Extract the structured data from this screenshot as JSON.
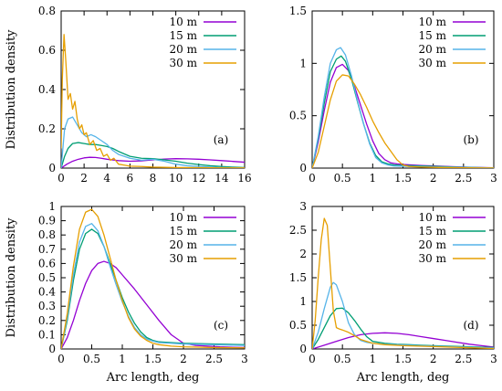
{
  "chart_data": [
    {
      "type": "line",
      "panel_tag": "(a)",
      "xlabel": "",
      "ylabel": "Distribution density",
      "xlim": [
        0,
        16
      ],
      "ylim": [
        0,
        0.8
      ],
      "xticks": [
        "0",
        "2",
        "4",
        "6",
        "8",
        "10",
        "12",
        "14",
        "16"
      ],
      "yticks": [
        "0",
        "0.2",
        "0.4",
        "0.6",
        "0.8"
      ],
      "legend_position": "top-right",
      "series": [
        {
          "name": "10 m",
          "color": "#9400D3",
          "x": [
            0,
            0.5,
            1,
            1.5,
            2,
            2.5,
            3,
            3.5,
            4,
            5,
            6,
            7,
            8,
            9,
            10,
            11,
            12,
            13,
            14,
            15,
            16
          ],
          "y": [
            0,
            0.02,
            0.035,
            0.045,
            0.052,
            0.055,
            0.054,
            0.05,
            0.045,
            0.038,
            0.035,
            0.037,
            0.042,
            0.046,
            0.048,
            0.047,
            0.045,
            0.042,
            0.038,
            0.034,
            0.03
          ]
        },
        {
          "name": "15 m",
          "color": "#009E73",
          "x": [
            0,
            0.3,
            0.6,
            1,
            1.5,
            2,
            2.5,
            3,
            3.5,
            4,
            4.5,
            5,
            6,
            7,
            8,
            9,
            10,
            11,
            12,
            13,
            14,
            15,
            16
          ],
          "y": [
            0,
            0.06,
            0.1,
            0.125,
            0.13,
            0.125,
            0.12,
            0.12,
            0.115,
            0.11,
            0.1,
            0.085,
            0.06,
            0.05,
            0.048,
            0.042,
            0.035,
            0.025,
            0.018,
            0.012,
            0.008,
            0.005,
            0.003
          ]
        },
        {
          "name": "20 m",
          "color": "#56B4E9",
          "x": [
            0,
            0.3,
            0.6,
            1,
            1.4,
            1.8,
            2.2,
            2.6,
            3,
            3.5,
            4,
            4.5,
            5,
            6,
            7,
            8,
            9,
            10,
            11,
            12,
            13,
            14,
            15,
            16
          ],
          "y": [
            0,
            0.2,
            0.25,
            0.26,
            0.22,
            0.18,
            0.16,
            0.17,
            0.16,
            0.14,
            0.12,
            0.09,
            0.07,
            0.05,
            0.04,
            0.045,
            0.035,
            0.02,
            0.012,
            0.008,
            0.005,
            0.003,
            0.002,
            0.001
          ]
        },
        {
          "name": "30 m",
          "color": "#E69F00",
          "x": [
            0,
            0.1,
            0.25,
            0.4,
            0.6,
            0.8,
            1,
            1.2,
            1.4,
            1.6,
            1.8,
            2,
            2.2,
            2.5,
            2.8,
            3.1,
            3.4,
            3.7,
            4,
            4.3,
            4.6,
            5,
            5.5,
            6,
            7,
            8,
            10,
            12,
            14,
            16
          ],
          "y": [
            0.1,
            0.45,
            0.68,
            0.55,
            0.35,
            0.38,
            0.3,
            0.34,
            0.25,
            0.2,
            0.22,
            0.17,
            0.18,
            0.12,
            0.14,
            0.09,
            0.1,
            0.06,
            0.07,
            0.04,
            0.05,
            0.02,
            0.015,
            0.01,
            0.008,
            0.005,
            0.003,
            0.002,
            0.001,
            0.001
          ]
        }
      ]
    },
    {
      "type": "line",
      "panel_tag": "(b)",
      "xlabel": "",
      "ylabel": "",
      "xlim": [
        0,
        3
      ],
      "ylim": [
        0,
        1.5
      ],
      "xticks": [
        "0",
        "0.5",
        "1",
        "1.5",
        "2",
        "2.5",
        "3"
      ],
      "yticks": [
        "0",
        "0.5",
        "1",
        "1.5"
      ],
      "legend_position": "top-right",
      "series": [
        {
          "name": "10 m",
          "color": "#9400D3",
          "x": [
            0,
            0.1,
            0.2,
            0.3,
            0.4,
            0.5,
            0.6,
            0.7,
            0.8,
            0.9,
            1.0,
            1.1,
            1.2,
            1.3,
            1.4,
            1.5,
            1.8,
            2.1,
            2.4,
            2.7,
            3.0
          ],
          "y": [
            0,
            0.25,
            0.55,
            0.82,
            0.96,
            0.99,
            0.93,
            0.78,
            0.6,
            0.42,
            0.26,
            0.14,
            0.08,
            0.05,
            0.04,
            0.035,
            0.025,
            0.018,
            0.012,
            0.006,
            0.003
          ]
        },
        {
          "name": "15 m",
          "color": "#009E73",
          "x": [
            0,
            0.1,
            0.2,
            0.3,
            0.4,
            0.48,
            0.55,
            0.65,
            0.75,
            0.85,
            0.95,
            1.05,
            1.15,
            1.25,
            1.35,
            1.5,
            1.8,
            2.1,
            2.4,
            2.7,
            3.0
          ],
          "y": [
            0,
            0.28,
            0.62,
            0.92,
            1.04,
            1.07,
            1.02,
            0.85,
            0.63,
            0.42,
            0.24,
            0.12,
            0.06,
            0.04,
            0.03,
            0.025,
            0.02,
            0.015,
            0.01,
            0.005,
            0.002
          ]
        },
        {
          "name": "20 m",
          "color": "#56B4E9",
          "x": [
            0,
            0.1,
            0.2,
            0.3,
            0.4,
            0.47,
            0.55,
            0.65,
            0.75,
            0.85,
            0.95,
            1.05,
            1.15,
            1.25,
            1.35,
            1.5,
            1.8,
            2.1,
            2.4,
            2.7,
            3.0
          ],
          "y": [
            0,
            0.3,
            0.68,
            1.0,
            1.13,
            1.15,
            1.08,
            0.88,
            0.64,
            0.42,
            0.23,
            0.1,
            0.05,
            0.03,
            0.02,
            0.018,
            0.014,
            0.01,
            0.007,
            0.004,
            0.002
          ]
        },
        {
          "name": "30 m",
          "color": "#E69F00",
          "x": [
            0,
            0.1,
            0.2,
            0.3,
            0.4,
            0.5,
            0.6,
            0.7,
            0.8,
            0.9,
            1.0,
            1.1,
            1.2,
            1.3,
            1.4,
            1.5,
            1.6,
            1.8,
            2.1,
            2.4,
            2.7,
            3.0
          ],
          "y": [
            0,
            0.15,
            0.4,
            0.65,
            0.83,
            0.89,
            0.88,
            0.8,
            0.7,
            0.58,
            0.45,
            0.34,
            0.24,
            0.16,
            0.08,
            0.03,
            0.015,
            0.01,
            0.006,
            0.004,
            0.002,
            0.001
          ]
        }
      ]
    },
    {
      "type": "line",
      "panel_tag": "(c)",
      "xlabel": "Arc length, deg",
      "ylabel": "Distribution density",
      "xlim": [
        0,
        3
      ],
      "ylim": [
        0,
        1
      ],
      "xticks": [
        "0",
        "0.5",
        "1",
        "1.5",
        "2",
        "2.5",
        "3"
      ],
      "yticks": [
        "0",
        "0.1",
        "0.2",
        "0.3",
        "0.4",
        "0.5",
        "0.6",
        "0.7",
        "0.8",
        "0.9",
        "1"
      ],
      "legend_position": "top-right",
      "series": [
        {
          "name": "10 m",
          "color": "#9400D3",
          "x": [
            0,
            0.1,
            0.2,
            0.3,
            0.4,
            0.5,
            0.6,
            0.7,
            0.8,
            0.9,
            1.0,
            1.2,
            1.4,
            1.6,
            1.8,
            2.0,
            2.2,
            2.4,
            2.6,
            2.8,
            3.0
          ],
          "y": [
            0,
            0.08,
            0.2,
            0.34,
            0.46,
            0.55,
            0.6,
            0.615,
            0.6,
            0.57,
            0.52,
            0.42,
            0.31,
            0.2,
            0.1,
            0.04,
            0.025,
            0.02,
            0.015,
            0.012,
            0.01
          ]
        },
        {
          "name": "15 m",
          "color": "#009E73",
          "x": [
            0,
            0.1,
            0.2,
            0.3,
            0.4,
            0.5,
            0.6,
            0.7,
            0.8,
            0.9,
            1.0,
            1.1,
            1.2,
            1.3,
            1.4,
            1.5,
            1.6,
            1.8,
            2.0,
            2.5,
            3.0
          ],
          "y": [
            0,
            0.2,
            0.48,
            0.7,
            0.81,
            0.84,
            0.81,
            0.72,
            0.6,
            0.48,
            0.36,
            0.26,
            0.18,
            0.12,
            0.08,
            0.06,
            0.05,
            0.045,
            0.04,
            0.035,
            0.03
          ]
        },
        {
          "name": "20 m",
          "color": "#56B4E9",
          "x": [
            0,
            0.1,
            0.2,
            0.3,
            0.4,
            0.5,
            0.6,
            0.7,
            0.8,
            0.9,
            1.0,
            1.1,
            1.2,
            1.3,
            1.4,
            1.5,
            1.6,
            1.8,
            2.0,
            2.5,
            3.0
          ],
          "y": [
            0,
            0.22,
            0.52,
            0.75,
            0.86,
            0.88,
            0.83,
            0.72,
            0.58,
            0.45,
            0.33,
            0.23,
            0.15,
            0.1,
            0.07,
            0.055,
            0.045,
            0.04,
            0.035,
            0.03,
            0.025
          ]
        },
        {
          "name": "30 m",
          "color": "#E69F00",
          "x": [
            0,
            0.1,
            0.2,
            0.3,
            0.4,
            0.5,
            0.6,
            0.7,
            0.8,
            0.9,
            1.0,
            1.1,
            1.2,
            1.3,
            1.4,
            1.5,
            1.6,
            1.8,
            2.0,
            2.5,
            3.0
          ],
          "y": [
            0,
            0.25,
            0.58,
            0.84,
            0.96,
            0.98,
            0.93,
            0.8,
            0.64,
            0.48,
            0.34,
            0.22,
            0.14,
            0.09,
            0.06,
            0.04,
            0.03,
            0.02,
            0.015,
            0.01,
            0.008
          ]
        }
      ]
    },
    {
      "type": "line",
      "panel_tag": "(d)",
      "xlabel": "Arc length, deg",
      "ylabel": "",
      "xlim": [
        0,
        3
      ],
      "ylim": [
        0,
        3
      ],
      "xticks": [
        "0",
        "0.5",
        "1",
        "1.5",
        "2",
        "2.5",
        "3"
      ],
      "yticks": [
        "0",
        "0.5",
        "1",
        "1.5",
        "2",
        "2.5",
        "3"
      ],
      "legend_position": "top-right",
      "series": [
        {
          "name": "10 m",
          "color": "#9400D3",
          "x": [
            0,
            0.2,
            0.4,
            0.6,
            0.8,
            1.0,
            1.2,
            1.4,
            1.6,
            1.8,
            2.0,
            2.2,
            2.4,
            2.6,
            2.8,
            3.0
          ],
          "y": [
            0,
            0.08,
            0.16,
            0.24,
            0.3,
            0.33,
            0.34,
            0.33,
            0.3,
            0.26,
            0.22,
            0.18,
            0.14,
            0.1,
            0.07,
            0.04
          ]
        },
        {
          "name": "15 m",
          "color": "#009E73",
          "x": [
            0,
            0.1,
            0.2,
            0.3,
            0.4,
            0.5,
            0.6,
            0.7,
            0.8,
            0.9,
            1.0,
            1.2,
            1.4,
            1.6,
            1.8,
            2.0,
            2.5,
            3.0
          ],
          "y": [
            0,
            0.2,
            0.45,
            0.7,
            0.85,
            0.86,
            0.76,
            0.6,
            0.42,
            0.26,
            0.16,
            0.12,
            0.1,
            0.09,
            0.08,
            0.07,
            0.05,
            0.03
          ]
        },
        {
          "name": "20 m",
          "color": "#56B4E9",
          "x": [
            0,
            0.1,
            0.2,
            0.3,
            0.35,
            0.4,
            0.5,
            0.6,
            0.7,
            0.8,
            0.9,
            1.0,
            1.2,
            1.4,
            1.6,
            2.0,
            2.5,
            3.0
          ],
          "y": [
            0,
            0.35,
            0.85,
            1.3,
            1.4,
            1.35,
            1.0,
            0.55,
            0.3,
            0.18,
            0.14,
            0.12,
            0.1,
            0.09,
            0.08,
            0.06,
            0.04,
            0.02
          ]
        },
        {
          "name": "30 m",
          "color": "#E69F00",
          "x": [
            0,
            0.05,
            0.1,
            0.15,
            0.2,
            0.25,
            0.3,
            0.35,
            0.4,
            0.45,
            0.5,
            0.6,
            0.7,
            0.8,
            1.0,
            1.2,
            1.5,
            2.0,
            2.5,
            3.0
          ],
          "y": [
            0,
            0.6,
            1.5,
            2.3,
            2.75,
            2.6,
            1.7,
            0.8,
            0.45,
            0.42,
            0.4,
            0.35,
            0.28,
            0.2,
            0.12,
            0.09,
            0.07,
            0.05,
            0.03,
            0.01
          ]
        }
      ]
    }
  ]
}
